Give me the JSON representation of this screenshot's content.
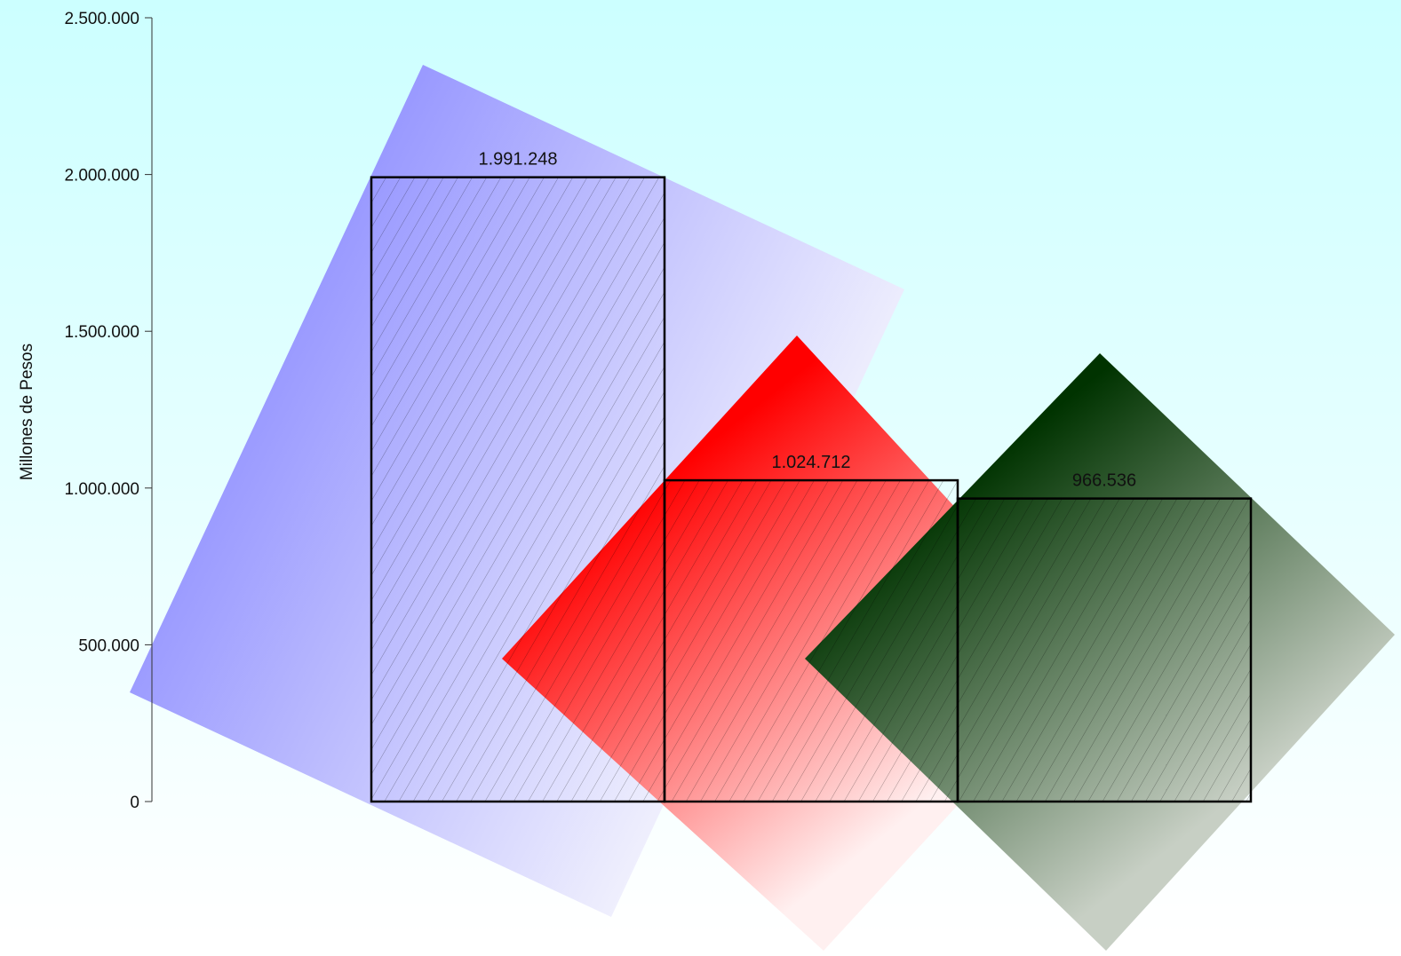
{
  "chart_data": {
    "type": "bar",
    "title": "",
    "xlabel": "",
    "ylabel": "Millones de Pesos",
    "ylim": [
      0,
      2500000
    ],
    "grid": false,
    "yticks": [
      0,
      500000,
      1000000,
      1500000,
      2000000,
      2500000
    ],
    "ytick_labels": [
      "0",
      "500.000",
      "1.000.000",
      "1.500.000",
      "2.000.000",
      "2.500.000"
    ],
    "values": [
      1991248,
      1024712,
      966536
    ],
    "value_labels": [
      "1.991.248",
      "1.024.712",
      "966.536"
    ],
    "bar_colors": [
      "#9999ff",
      "#ff0000",
      "#003300"
    ]
  },
  "colors": {
    "background_top": "#ccffff",
    "background_bottom": "#ffffff",
    "bar_outline": "#000000"
  }
}
